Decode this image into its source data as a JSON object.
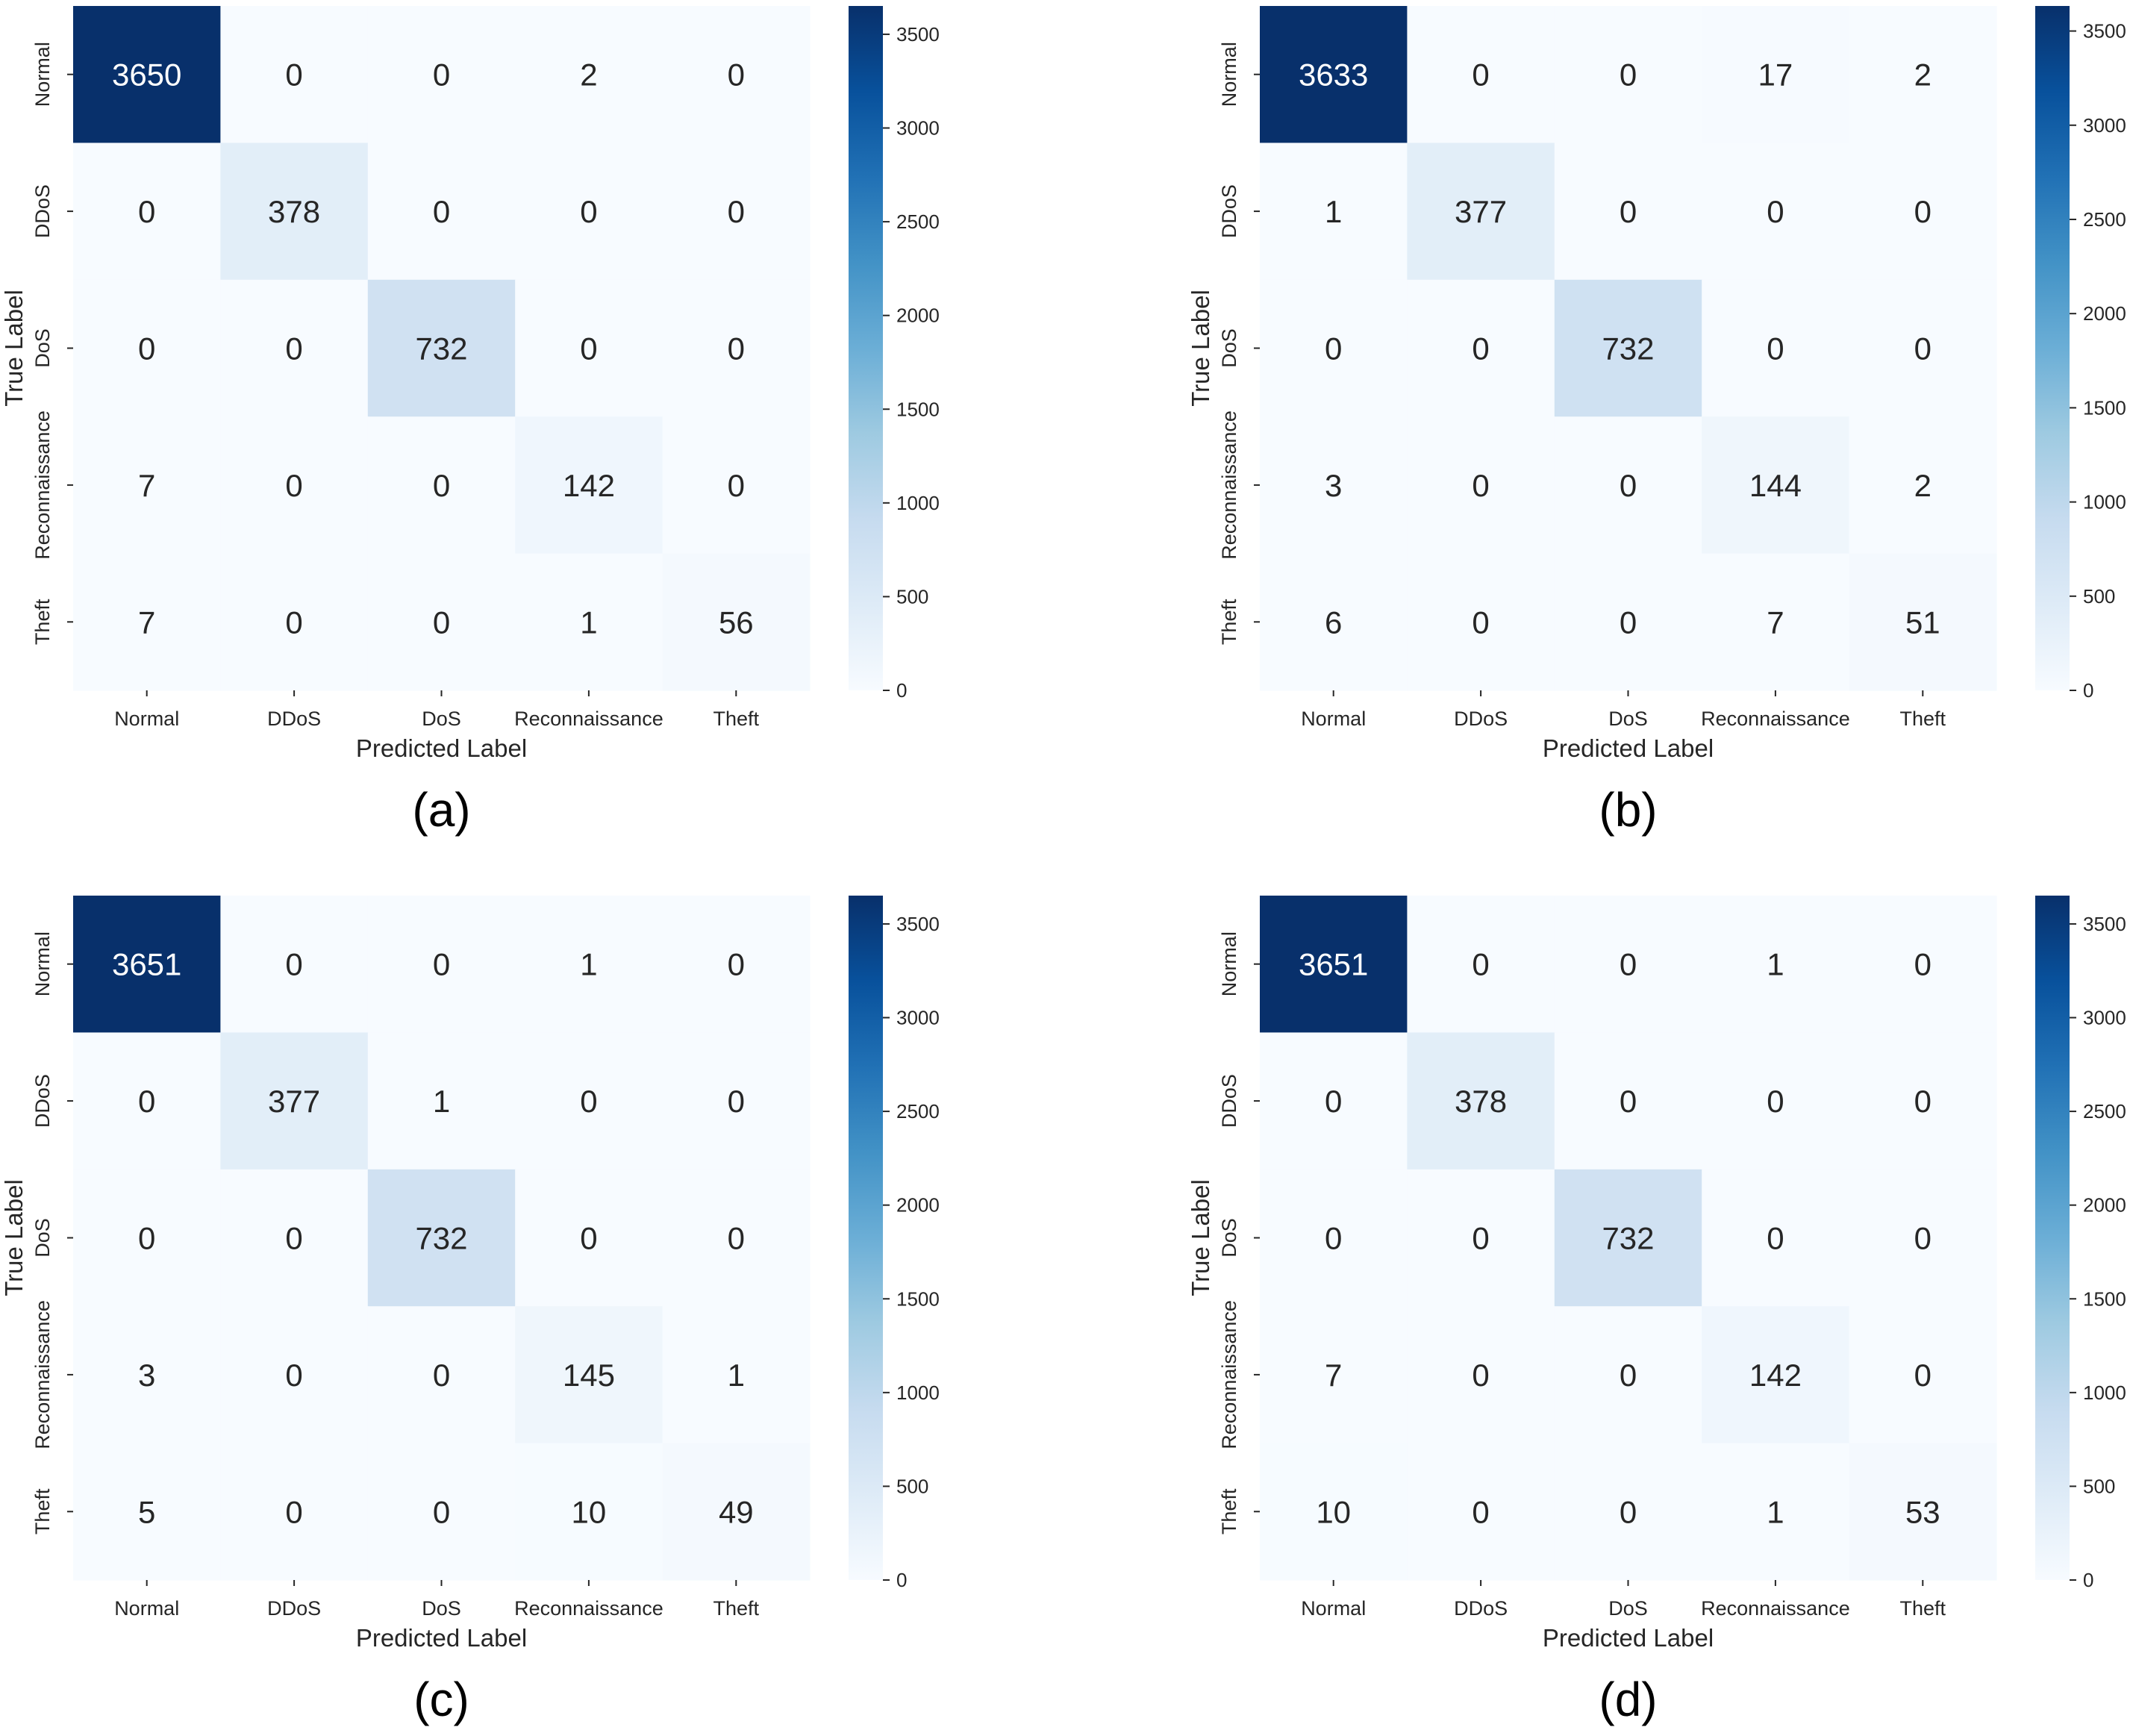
{
  "chart_data": [
    {
      "type": "heatmap",
      "panel_label": "(a)",
      "xlabel": "Predicted Label",
      "ylabel": "True Label",
      "x_categories": [
        "Normal",
        "DDoS",
        "DoS",
        "Reconnaissance",
        "Theft"
      ],
      "y_categories": [
        "Normal",
        "DDoS",
        "DoS",
        "Reconnaissance",
        "Theft"
      ],
      "matrix": [
        [
          3650,
          0,
          0,
          2,
          0
        ],
        [
          0,
          378,
          0,
          0,
          0
        ],
        [
          0,
          0,
          732,
          0,
          0
        ],
        [
          7,
          0,
          0,
          142,
          0
        ],
        [
          7,
          0,
          0,
          1,
          56
        ]
      ],
      "vmin": 0,
      "vmax": 3651,
      "colorbar_ticks": [
        0,
        500,
        1000,
        1500,
        2000,
        2500,
        3000,
        3500
      ]
    },
    {
      "type": "heatmap",
      "panel_label": "(b)",
      "xlabel": "Predicted Label",
      "ylabel": "True Label",
      "x_categories": [
        "Normal",
        "DDoS",
        "DoS",
        "Reconnaissance",
        "Theft"
      ],
      "y_categories": [
        "Normal",
        "DDoS",
        "DoS",
        "Reconnaissance",
        "Theft"
      ],
      "matrix": [
        [
          3633,
          0,
          0,
          17,
          2
        ],
        [
          1,
          377,
          0,
          0,
          0
        ],
        [
          0,
          0,
          732,
          0,
          0
        ],
        [
          3,
          0,
          0,
          144,
          2
        ],
        [
          6,
          0,
          0,
          7,
          51
        ]
      ],
      "vmin": 0,
      "vmax": 3633,
      "colorbar_ticks": [
        0,
        500,
        1000,
        1500,
        2000,
        2500,
        3000,
        3500
      ]
    },
    {
      "type": "heatmap",
      "panel_label": "(c)",
      "xlabel": "Predicted Label",
      "ylabel": "True Label",
      "x_categories": [
        "Normal",
        "DDoS",
        "DoS",
        "Reconnaissance",
        "Theft"
      ],
      "y_categories": [
        "Normal",
        "DDoS",
        "DoS",
        "Reconnaissance",
        "Theft"
      ],
      "matrix": [
        [
          3651,
          0,
          0,
          1,
          0
        ],
        [
          0,
          377,
          1,
          0,
          0
        ],
        [
          0,
          0,
          732,
          0,
          0
        ],
        [
          3,
          0,
          0,
          145,
          1
        ],
        [
          5,
          0,
          0,
          10,
          49
        ]
      ],
      "vmin": 0,
      "vmax": 3651,
      "colorbar_ticks": [
        0,
        500,
        1000,
        1500,
        2000,
        2500,
        3000,
        3500
      ]
    },
    {
      "type": "heatmap",
      "panel_label": "(d)",
      "xlabel": "Predicted Label",
      "ylabel": "True Label",
      "x_categories": [
        "Normal",
        "DDoS",
        "DoS",
        "Reconnaissance",
        "Theft"
      ],
      "y_categories": [
        "Normal",
        "DDoS",
        "DoS",
        "Reconnaissance",
        "Theft"
      ],
      "matrix": [
        [
          3651,
          0,
          0,
          1,
          0
        ],
        [
          0,
          378,
          0,
          0,
          0
        ],
        [
          0,
          0,
          732,
          0,
          0
        ],
        [
          7,
          0,
          0,
          142,
          0
        ],
        [
          10,
          0,
          0,
          1,
          53
        ]
      ],
      "vmin": 0,
      "vmax": 3651,
      "colorbar_ticks": [
        0,
        500,
        1000,
        1500,
        2000,
        2500,
        3000,
        3500
      ]
    }
  ],
  "colors": {
    "low": "#f7fbff",
    "high": "#08306b",
    "dark_text": "#262626",
    "light_text": "#ffffff"
  }
}
